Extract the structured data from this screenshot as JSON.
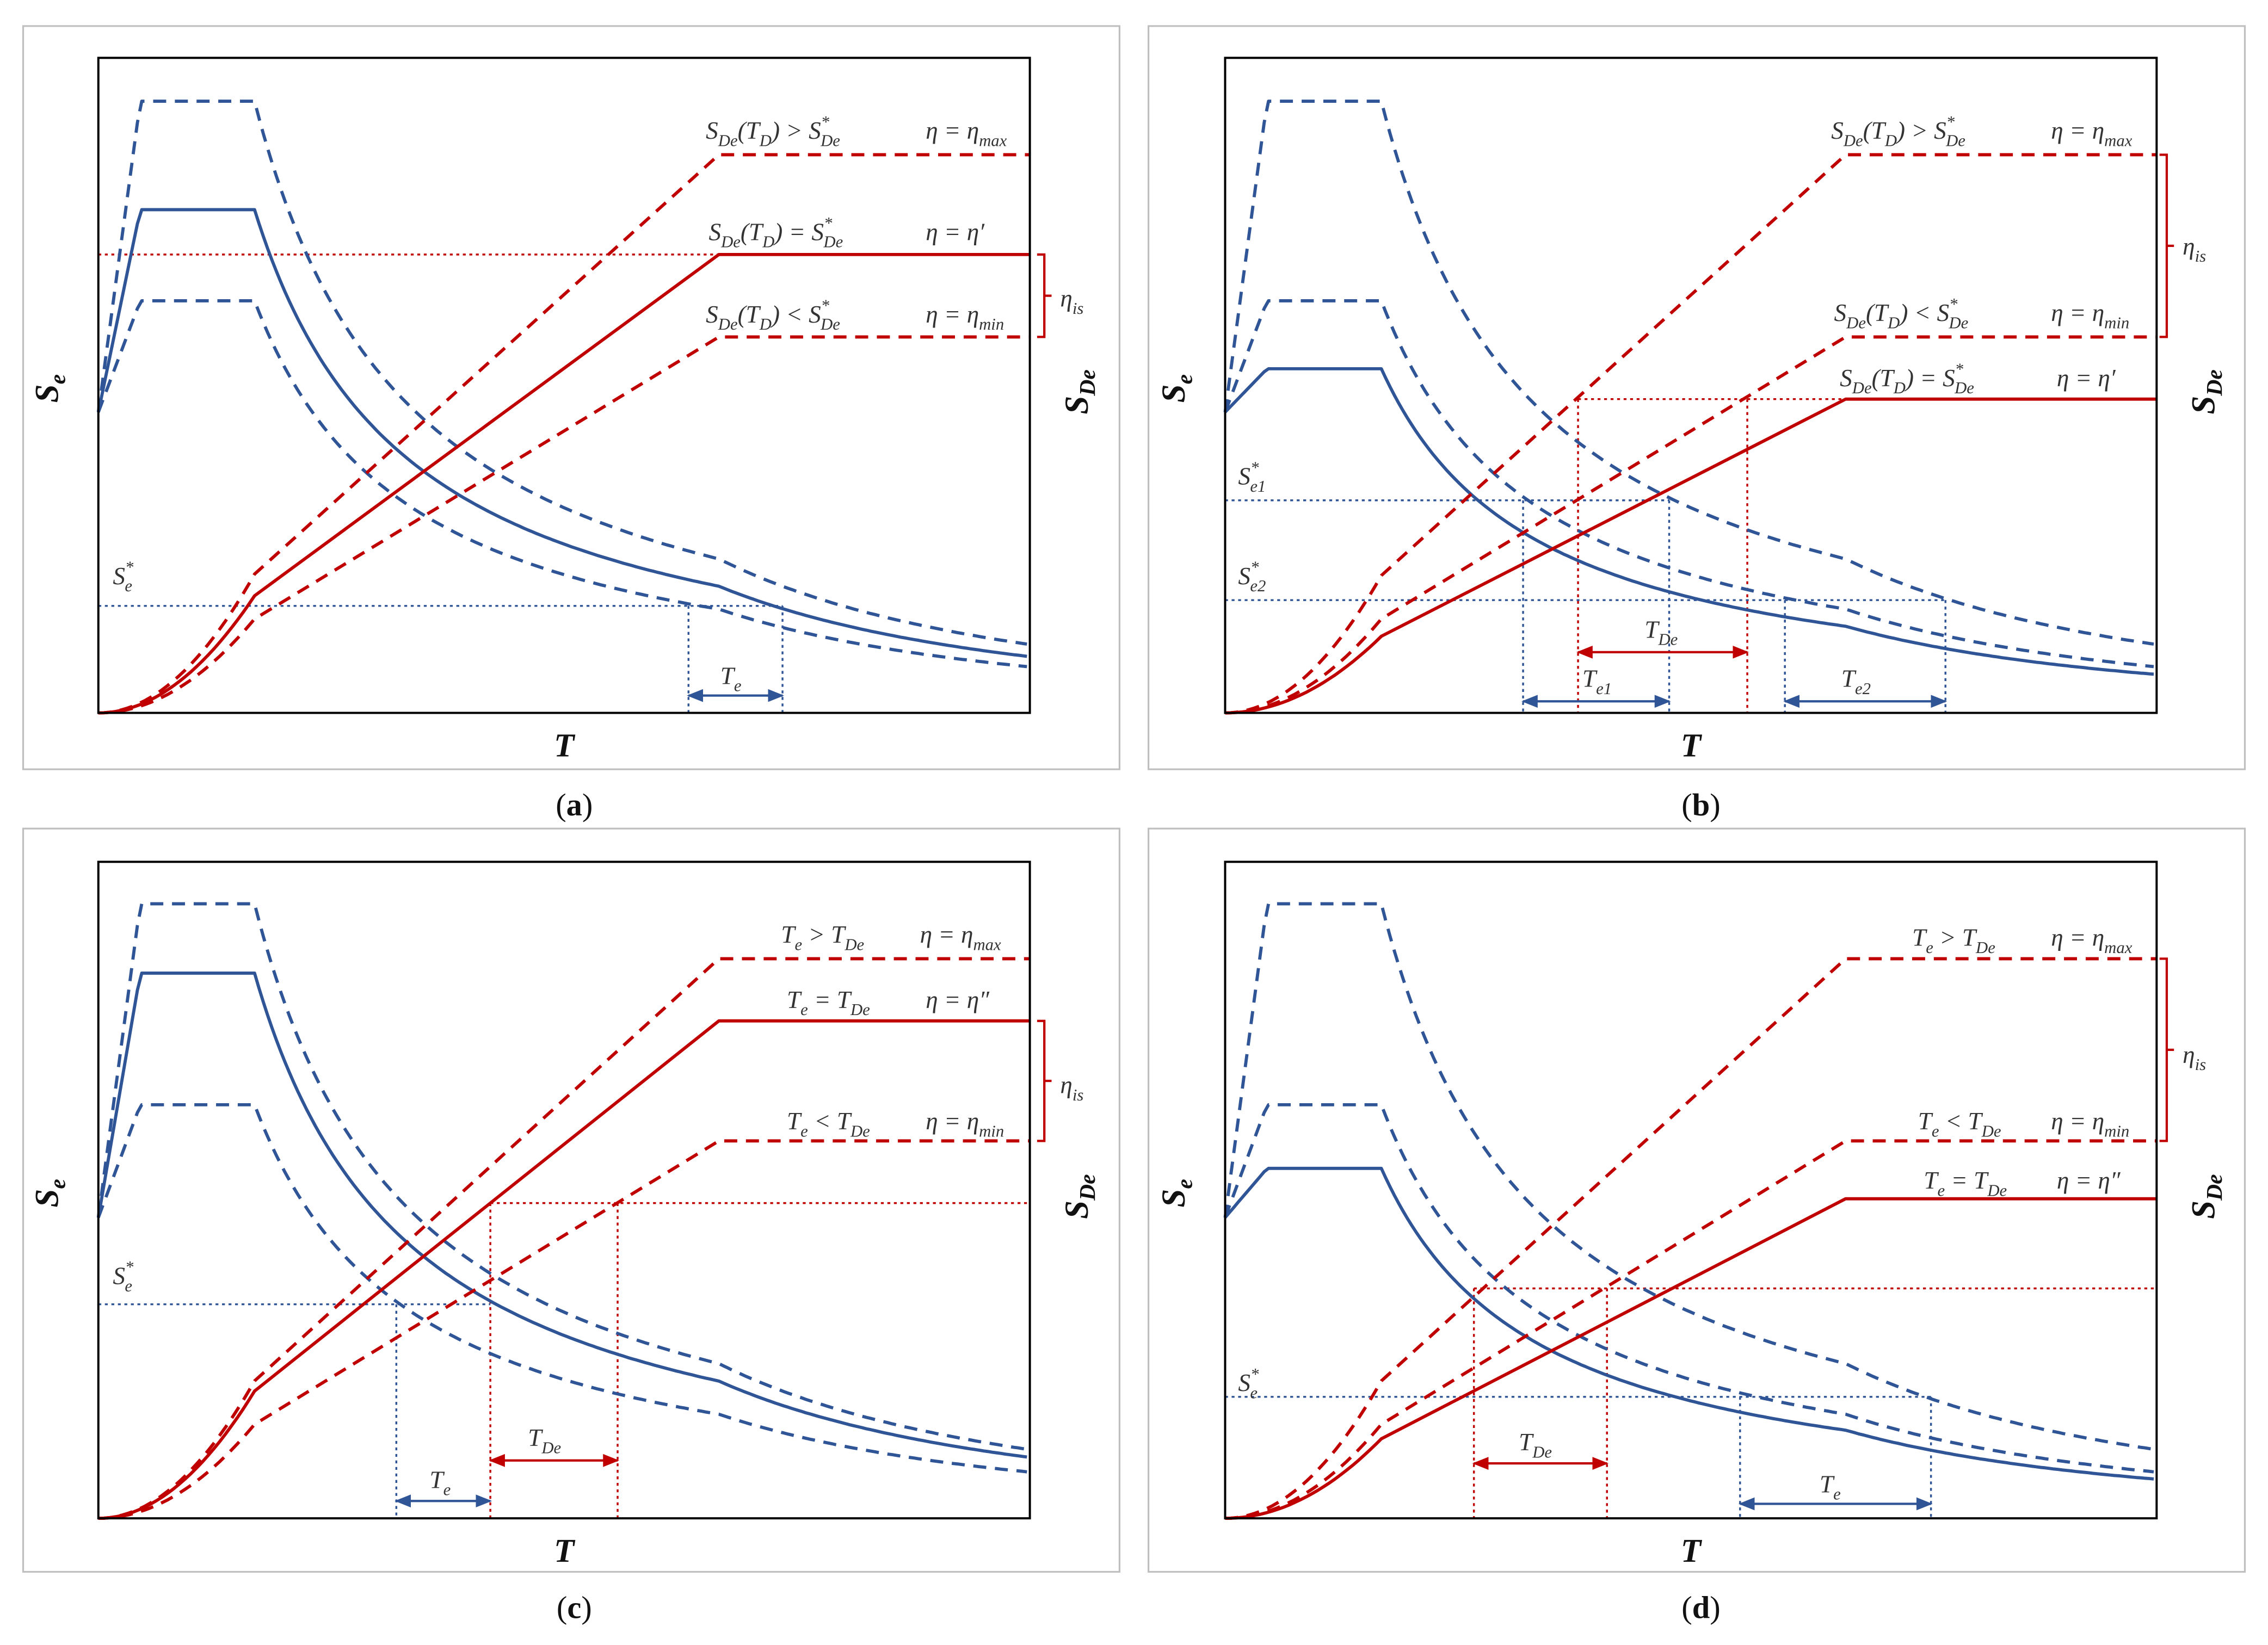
{
  "colors": {
    "blue": "#2f5597",
    "red": "#c00000",
    "frame": "#bfbfbf",
    "axis": "#000000"
  },
  "common": {
    "se_axis": [
      {
        "t": "S"
      },
      {
        "t": "e",
        "s": "sub"
      }
    ],
    "sde_axis": [
      {
        "t": "S"
      },
      {
        "t": "De",
        "s": "sub"
      }
    ],
    "t_axis": [
      {
        "t": "T"
      }
    ],
    "eta_is": [
      {
        "t": "η"
      },
      {
        "t": "is",
        "s": "sub"
      }
    ]
  },
  "panels": [
    {
      "caption_open": "(",
      "caption": "a",
      "caption_close": ")",
      "texts": {
        "cond_max": [
          {
            "t": "S"
          },
          {
            "t": "De",
            "s": "sub"
          },
          {
            "t": "(T"
          },
          {
            "t": "D",
            "s": "sub"
          },
          {
            "t": ") > S"
          },
          {
            "t": "*",
            "s": "sup"
          },
          {
            "t": "De",
            "s": "sub",
            "back": true
          }
        ],
        "eta_max": [
          {
            "t": "η = η"
          },
          {
            "t": "max",
            "s": "sub"
          }
        ],
        "cond_eq": [
          {
            "t": "S"
          },
          {
            "t": "De",
            "s": "sub"
          },
          {
            "t": "(T"
          },
          {
            "t": "D",
            "s": "sub"
          },
          {
            "t": ") = S"
          },
          {
            "t": "*",
            "s": "sup"
          },
          {
            "t": "De",
            "s": "sub",
            "back": true
          }
        ],
        "eta_eq": [
          {
            "t": "η = η′"
          }
        ],
        "cond_min": [
          {
            "t": "S"
          },
          {
            "t": "De",
            "s": "sub"
          },
          {
            "t": "(T"
          },
          {
            "t": "D",
            "s": "sub"
          },
          {
            "t": ") < S"
          },
          {
            "t": "*",
            "s": "sup"
          },
          {
            "t": "De",
            "s": "sub",
            "back": true
          }
        ],
        "eta_min": [
          {
            "t": "η = η"
          },
          {
            "t": "min",
            "s": "sub"
          }
        ],
        "se_star": [
          {
            "t": "S"
          },
          {
            "t": "*",
            "s": "sup"
          },
          {
            "t": "e",
            "s": "sub",
            "back": true
          }
        ],
        "te": [
          {
            "t": "T"
          },
          {
            "t": "e",
            "s": "sub"
          }
        ]
      }
    },
    {
      "caption_open": "(",
      "caption": "b",
      "caption_close": ")",
      "texts": {
        "cond_max": [
          {
            "t": "S"
          },
          {
            "t": "De",
            "s": "sub"
          },
          {
            "t": "(T"
          },
          {
            "t": "D",
            "s": "sub"
          },
          {
            "t": ") > S"
          },
          {
            "t": "*",
            "s": "sup"
          },
          {
            "t": "De",
            "s": "sub",
            "back": true
          }
        ],
        "eta_max": [
          {
            "t": "η = η"
          },
          {
            "t": "max",
            "s": "sub"
          }
        ],
        "cond_min": [
          {
            "t": "S"
          },
          {
            "t": "De",
            "s": "sub"
          },
          {
            "t": "(T"
          },
          {
            "t": "D",
            "s": "sub"
          },
          {
            "t": ") < S"
          },
          {
            "t": "*",
            "s": "sup"
          },
          {
            "t": "De",
            "s": "sub",
            "back": true
          }
        ],
        "eta_min": [
          {
            "t": "η = η"
          },
          {
            "t": "min",
            "s": "sub"
          }
        ],
        "cond_eq": [
          {
            "t": "S"
          },
          {
            "t": "De",
            "s": "sub"
          },
          {
            "t": "(T"
          },
          {
            "t": "D",
            "s": "sub"
          },
          {
            "t": ") = S"
          },
          {
            "t": "*",
            "s": "sup"
          },
          {
            "t": "De",
            "s": "sub",
            "back": true
          }
        ],
        "eta_eq": [
          {
            "t": "η = η′"
          }
        ],
        "se1_star": [
          {
            "t": "S"
          },
          {
            "t": "*",
            "s": "sup"
          },
          {
            "t": "e1",
            "s": "sub",
            "back": true
          }
        ],
        "se2_star": [
          {
            "t": "S"
          },
          {
            "t": "*",
            "s": "sup"
          },
          {
            "t": "e2",
            "s": "sub",
            "back": true
          }
        ],
        "tde": [
          {
            "t": "T"
          },
          {
            "t": "De",
            "s": "sub"
          }
        ],
        "te1": [
          {
            "t": "T"
          },
          {
            "t": "e1",
            "s": "sub"
          }
        ],
        "te2": [
          {
            "t": "T"
          },
          {
            "t": "e2",
            "s": "sub"
          }
        ]
      }
    },
    {
      "caption_open": "(",
      "caption": "c",
      "caption_close": ")",
      "texts": {
        "cond_max": [
          {
            "t": "T"
          },
          {
            "t": "e",
            "s": "sub"
          },
          {
            "t": " > T"
          },
          {
            "t": "De",
            "s": "sub"
          }
        ],
        "eta_max": [
          {
            "t": "η = η"
          },
          {
            "t": "max",
            "s": "sub"
          }
        ],
        "cond_eq": [
          {
            "t": "T"
          },
          {
            "t": "e",
            "s": "sub"
          },
          {
            "t": " = T"
          },
          {
            "t": "De",
            "s": "sub"
          }
        ],
        "eta_eq": [
          {
            "t": "η = η″"
          }
        ],
        "cond_min": [
          {
            "t": "T"
          },
          {
            "t": "e",
            "s": "sub"
          },
          {
            "t": " < T"
          },
          {
            "t": "De",
            "s": "sub"
          }
        ],
        "eta_min": [
          {
            "t": "η = η"
          },
          {
            "t": "min",
            "s": "sub"
          }
        ],
        "se_star": [
          {
            "t": "S"
          },
          {
            "t": "*",
            "s": "sup"
          },
          {
            "t": "e",
            "s": "sub",
            "back": true
          }
        ],
        "te": [
          {
            "t": "T"
          },
          {
            "t": "e",
            "s": "sub"
          }
        ],
        "tde": [
          {
            "t": "T"
          },
          {
            "t": "De",
            "s": "sub"
          }
        ]
      }
    },
    {
      "caption_open": "(",
      "caption": "d",
      "caption_close": ")",
      "texts": {
        "cond_max": [
          {
            "t": "T"
          },
          {
            "t": "e",
            "s": "sub"
          },
          {
            "t": " > T"
          },
          {
            "t": "De",
            "s": "sub"
          }
        ],
        "eta_max": [
          {
            "t": "η = η"
          },
          {
            "t": "max",
            "s": "sub"
          }
        ],
        "cond_min": [
          {
            "t": "T"
          },
          {
            "t": "e",
            "s": "sub"
          },
          {
            "t": " < T"
          },
          {
            "t": "De",
            "s": "sub"
          }
        ],
        "eta_min": [
          {
            "t": "η = η"
          },
          {
            "t": "min",
            "s": "sub"
          }
        ],
        "cond_eq": [
          {
            "t": "T"
          },
          {
            "t": "e",
            "s": "sub"
          },
          {
            "t": " = T"
          },
          {
            "t": "De",
            "s": "sub"
          }
        ],
        "eta_eq": [
          {
            "t": "η = η″"
          }
        ],
        "se_star": [
          {
            "t": "S"
          },
          {
            "t": "*",
            "s": "sup"
          },
          {
            "t": "e",
            "s": "sub",
            "back": true
          }
        ],
        "tde": [
          {
            "t": "T"
          },
          {
            "t": "De",
            "s": "sub"
          }
        ],
        "te": [
          {
            "t": "T"
          },
          {
            "t": "e",
            "s": "sub"
          }
        ]
      }
    }
  ]
}
